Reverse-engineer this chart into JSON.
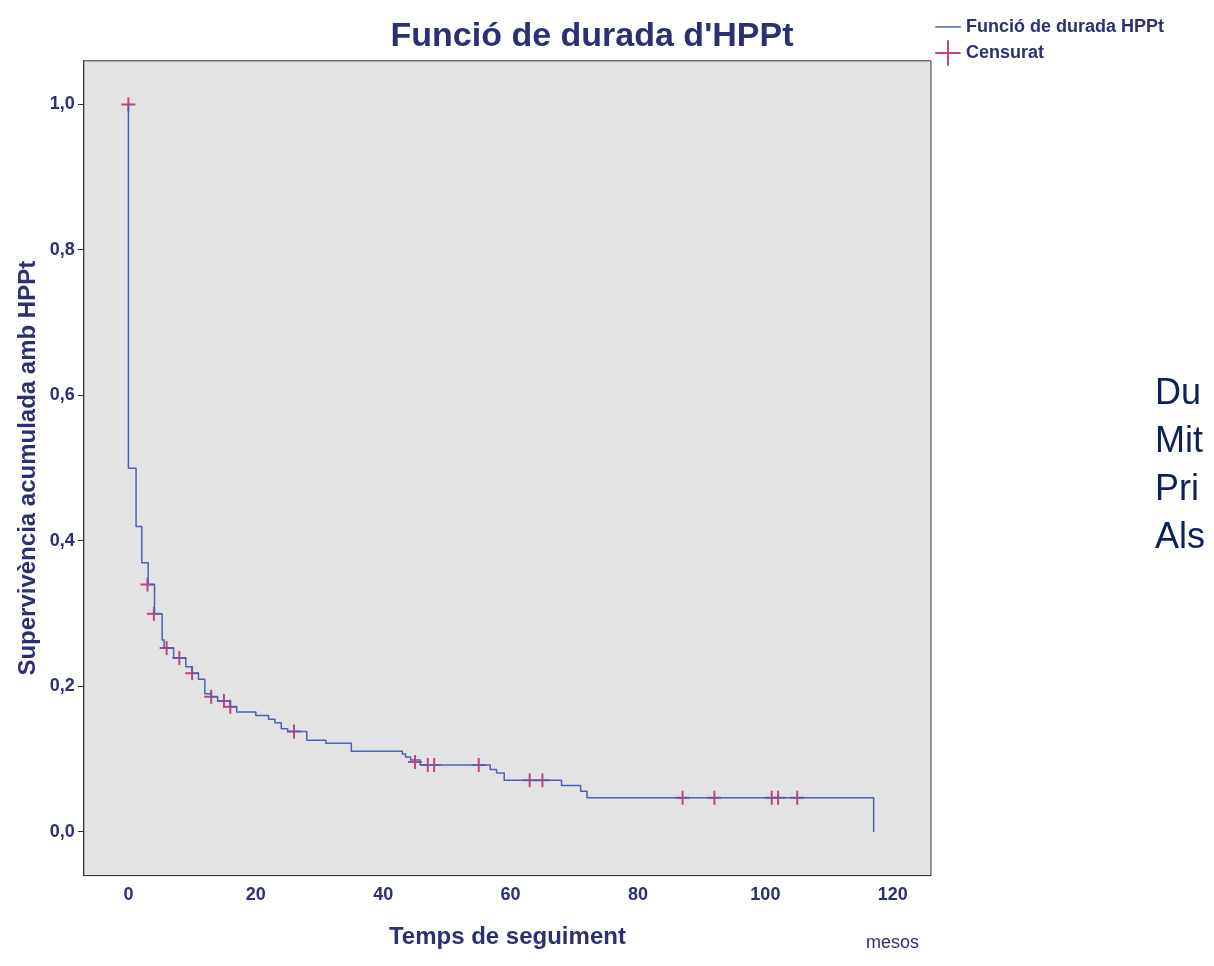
{
  "chart_data": {
    "type": "step",
    "title": "Funció de durada d'HPPt",
    "xlabel": "Temps de seguiment",
    "ylabel": "Supervivència acumulada amb HPPt",
    "xlim": [
      -7,
      126
    ],
    "ylim": [
      -0.06,
      1.06
    ],
    "xticks": [
      0,
      20,
      40,
      60,
      80,
      100,
      120
    ],
    "yticks": [
      {
        "value": 0,
        "label": "0,0"
      },
      {
        "value": 0.2,
        "label": "0,2"
      },
      {
        "value": 0.4,
        "label": "0,4"
      },
      {
        "value": 0.6,
        "label": "0,6"
      },
      {
        "value": 0.8,
        "label": "0,8"
      },
      {
        "value": 1,
        "label": "1,0"
      }
    ],
    "grid": false,
    "legend": "right",
    "series": [
      {
        "name": "Funció de durada HPPt",
        "color": "#4a63b8",
        "x": [
          0,
          0,
          1.2,
          2.1,
          3.1,
          4.1,
          5.3,
          5.6,
          7.1,
          9,
          10,
          11,
          12,
          13,
          14,
          16,
          17,
          20,
          22,
          23,
          24,
          25,
          28,
          31,
          35,
          43,
          43.5,
          44.3,
          45.8,
          56.8,
          57.8,
          59,
          68,
          71,
          72,
          117
        ],
        "values": [
          1,
          0.5,
          0.42,
          0.37,
          0.34,
          0.3,
          0.264,
          0.253,
          0.239,
          0.227,
          0.218,
          0.21,
          0.19,
          0.186,
          0.18,
          0.172,
          0.165,
          0.16,
          0.155,
          0.15,
          0.142,
          0.138,
          0.126,
          0.122,
          0.111,
          0.107,
          0.103,
          0.099,
          0.092,
          0.086,
          0.081,
          0.071,
          0.064,
          0.056,
          0.047,
          0
        ]
      },
      {
        "name": "Censurat",
        "type": "scatter",
        "marker": "cross",
        "color": "#c8427a",
        "x": [
          0,
          3,
          4,
          6,
          8,
          10,
          13,
          15,
          16,
          26,
          45,
          47,
          48,
          55,
          63,
          65,
          87,
          92,
          101,
          102,
          105
        ],
        "values": [
          1,
          0.34,
          0.3,
          0.253,
          0.239,
          0.218,
          0.186,
          0.18,
          0.172,
          0.138,
          0.096,
          0.092,
          0.092,
          0.092,
          0.071,
          0.071,
          0.047,
          0.047,
          0.047,
          0.047,
          0.047
        ]
      }
    ],
    "annotations": [
      "mesos",
      "Du",
      "Mit",
      "Pri",
      "Als"
    ]
  }
}
